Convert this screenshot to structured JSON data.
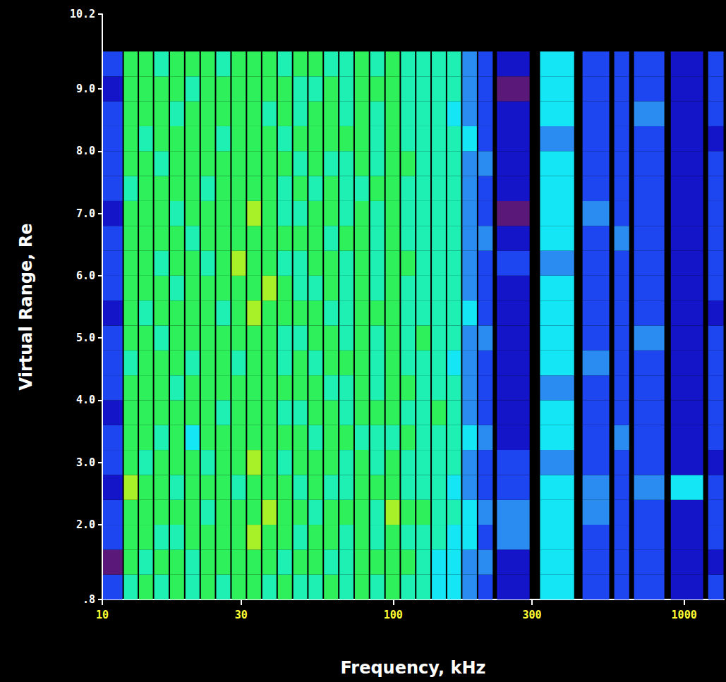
{
  "chart_data": {
    "type": "heatmap",
    "x_label": "Frequency, kHz",
    "y_label": "Virtual Range, Re",
    "log": "x",
    "grid": false,
    "xlim": [
      10,
      1370
    ],
    "xticks": [
      10,
      30,
      100,
      300,
      1000
    ],
    "ylim": [
      0.8,
      10.2
    ],
    "yticks": [
      {
        "value": 0.8,
        "label": ".8"
      },
      {
        "value": 2,
        "label": "2.0"
      },
      {
        "value": 3,
        "label": "3.0"
      },
      {
        "value": 4,
        "label": "4.0"
      },
      {
        "value": 5,
        "label": "5.0"
      },
      {
        "value": 6,
        "label": "6.0"
      },
      {
        "value": 7,
        "label": "7.0"
      },
      {
        "value": 8,
        "label": "8.0"
      },
      {
        "value": 9,
        "label": "9.0"
      },
      {
        "value": 10.2,
        "label": "10.2"
      }
    ],
    "zlim": [
      0,
      8
    ],
    "y_edges": [
      0.8,
      1.2,
      1.6,
      2.0,
      2.4,
      2.8,
      3.2,
      3.6,
      4.0,
      4.4,
      4.8,
      5.2,
      5.6,
      6.0,
      6.4,
      6.8,
      7.2,
      7.6,
      8.0,
      8.4,
      8.8,
      9.2,
      9.6
    ],
    "columns": [
      {
        "f": [
          10,
          11.8
        ],
        "values": [
          2,
          0,
          2,
          2,
          1,
          2,
          2,
          1,
          2,
          2,
          2,
          1,
          2,
          2,
          2,
          1,
          2,
          2,
          2,
          2,
          1,
          2
        ]
      },
      {
        "f": [
          11.8,
          13.3
        ],
        "values": [
          5,
          6,
          6,
          6,
          7,
          6,
          6,
          6,
          6,
          5,
          6,
          6,
          6,
          6,
          6,
          6,
          5,
          6,
          6,
          6,
          6,
          6
        ]
      },
      {
        "f": [
          13.3,
          15.0
        ],
        "values": [
          6,
          5,
          6,
          6,
          6,
          5,
          6,
          6,
          6,
          6,
          6,
          5,
          6,
          6,
          6,
          6,
          6,
          6,
          5,
          6,
          6,
          6
        ]
      },
      {
        "f": [
          15.0,
          17.0
        ],
        "values": [
          5,
          6,
          5,
          6,
          6,
          6,
          5,
          6,
          6,
          6,
          5,
          6,
          6,
          5,
          6,
          6,
          6,
          5,
          6,
          6,
          6,
          5
        ]
      },
      {
        "f": [
          17.0,
          19.2
        ],
        "values": [
          6,
          6,
          5,
          6,
          5,
          6,
          6,
          6,
          5,
          6,
          6,
          6,
          5,
          6,
          6,
          5,
          6,
          6,
          6,
          5,
          6,
          6
        ]
      },
      {
        "f": [
          19.2,
          21.7
        ],
        "values": [
          5,
          5,
          6,
          6,
          6,
          6,
          4,
          6,
          6,
          5,
          6,
          6,
          6,
          6,
          5,
          6,
          6,
          6,
          6,
          6,
          5,
          6
        ]
      },
      {
        "f": [
          21.7,
          24.5
        ],
        "values": [
          6,
          6,
          6,
          5,
          6,
          5,
          6,
          6,
          6,
          6,
          6,
          6,
          6,
          5,
          6,
          6,
          5,
          6,
          6,
          6,
          6,
          6
        ]
      },
      {
        "f": [
          24.5,
          27.7
        ],
        "values": [
          5,
          6,
          6,
          6,
          6,
          6,
          6,
          5,
          6,
          6,
          6,
          5,
          6,
          6,
          6,
          6,
          6,
          6,
          5,
          6,
          6,
          5
        ]
      },
      {
        "f": [
          27.7,
          31.3
        ],
        "values": [
          6,
          6,
          6,
          6,
          5,
          6,
          6,
          6,
          6,
          5,
          6,
          6,
          6,
          7,
          6,
          6,
          6,
          6,
          6,
          6,
          6,
          6
        ]
      },
      {
        "f": [
          31.3,
          35.3
        ],
        "values": [
          6,
          6,
          7,
          6,
          6,
          7,
          6,
          6,
          6,
          6,
          6,
          7,
          6,
          6,
          6,
          7,
          6,
          6,
          6,
          6,
          6,
          6
        ]
      },
      {
        "f": [
          35.3,
          39.9
        ],
        "values": [
          5,
          6,
          6,
          7,
          6,
          6,
          6,
          6,
          6,
          6,
          6,
          6,
          7,
          6,
          6,
          6,
          6,
          6,
          6,
          5,
          6,
          6
        ]
      },
      {
        "f": [
          39.9,
          45.1
        ],
        "values": [
          6,
          5,
          6,
          6,
          6,
          5,
          6,
          5,
          6,
          5,
          5,
          6,
          6,
          5,
          6,
          5,
          5,
          6,
          5,
          6,
          6,
          5
        ]
      },
      {
        "f": [
          45.1,
          50.9
        ],
        "values": [
          5,
          6,
          5,
          6,
          5,
          6,
          6,
          5,
          6,
          6,
          5,
          6,
          5,
          5,
          6,
          5,
          6,
          5,
          6,
          5,
          5,
          6
        ]
      },
      {
        "f": [
          50.9,
          57.5
        ],
        "values": [
          5,
          6,
          6,
          5,
          6,
          6,
          5,
          6,
          6,
          5,
          6,
          6,
          5,
          6,
          6,
          6,
          5,
          6,
          6,
          6,
          5,
          6
        ]
      },
      {
        "f": [
          57.5,
          65.0
        ],
        "values": [
          6,
          5,
          6,
          6,
          5,
          6,
          6,
          6,
          5,
          6,
          6,
          5,
          6,
          6,
          5,
          6,
          6,
          5,
          6,
          6,
          6,
          5
        ]
      },
      {
        "f": [
          65.0,
          73.4
        ],
        "values": [
          5,
          5,
          5,
          6,
          5,
          5,
          6,
          5,
          5,
          6,
          5,
          5,
          5,
          5,
          6,
          5,
          5,
          5,
          6,
          5,
          5,
          5
        ]
      },
      {
        "f": [
          73.4,
          82.9
        ],
        "values": [
          6,
          6,
          6,
          6,
          6,
          6,
          5,
          6,
          6,
          6,
          6,
          6,
          6,
          6,
          6,
          6,
          5,
          6,
          6,
          6,
          6,
          6
        ]
      },
      {
        "f": [
          82.9,
          93.7
        ],
        "values": [
          5,
          6,
          5,
          5,
          6,
          5,
          5,
          6,
          5,
          5,
          5,
          6,
          5,
          5,
          5,
          5,
          6,
          5,
          5,
          5,
          6,
          5
        ]
      },
      {
        "f": [
          93.7,
          105.8
        ],
        "values": [
          6,
          6,
          6,
          7,
          6,
          6,
          5,
          6,
          6,
          6,
          6,
          6,
          6,
          6,
          6,
          6,
          6,
          6,
          6,
          6,
          6,
          6
        ]
      },
      {
        "f": [
          105.8,
          119.5
        ],
        "values": [
          5,
          6,
          5,
          6,
          5,
          5,
          6,
          5,
          6,
          5,
          5,
          5,
          5,
          6,
          5,
          5,
          5,
          6,
          5,
          5,
          5,
          5
        ]
      },
      {
        "f": [
          119.5,
          135
        ],
        "values": [
          5,
          5,
          5,
          6,
          5,
          5,
          5,
          5,
          5,
          5,
          6,
          5,
          5,
          5,
          5,
          5,
          5,
          5,
          5,
          5,
          5,
          5
        ]
      },
      {
        "f": [
          135,
          152.5
        ],
        "values": [
          4,
          4,
          5,
          5,
          5,
          5,
          5,
          6,
          5,
          5,
          5,
          5,
          5,
          5,
          5,
          5,
          5,
          5,
          5,
          5,
          5,
          5
        ]
      },
      {
        "f": [
          152.5,
          172
        ],
        "values": [
          4,
          4,
          4,
          5,
          4,
          5,
          5,
          5,
          5,
          4,
          5,
          5,
          5,
          5,
          5,
          5,
          5,
          5,
          5,
          4,
          5,
          5
        ]
      },
      {
        "f": [
          172,
          195
        ],
        "values": [
          3,
          3,
          4,
          4,
          3,
          3,
          4,
          3,
          3,
          3,
          3,
          4,
          3,
          3,
          3,
          3,
          3,
          3,
          4,
          3,
          3,
          3
        ]
      },
      {
        "f": [
          195,
          221
        ],
        "values": [
          2,
          3,
          2,
          3,
          2,
          2,
          3,
          2,
          2,
          2,
          3,
          2,
          2,
          2,
          3,
          2,
          2,
          3,
          2,
          2,
          2,
          2
        ]
      },
      {
        "f": [
          226,
          296
        ],
        "values": [
          1,
          1,
          3,
          3,
          2,
          2,
          1,
          1,
          1,
          1,
          1,
          1,
          1,
          2,
          1,
          0,
          1,
          1,
          1,
          1,
          0,
          1
        ]
      },
      {
        "f": [
          318,
          421
        ],
        "values": [
          4,
          4,
          4,
          4,
          4,
          3,
          4,
          4,
          3,
          4,
          4,
          4,
          4,
          3,
          4,
          4,
          4,
          4,
          3,
          4,
          4,
          4
        ]
      },
      {
        "f": [
          445,
          556
        ],
        "values": [
          2,
          2,
          2,
          3,
          3,
          2,
          2,
          2,
          2,
          3,
          2,
          2,
          2,
          2,
          2,
          3,
          2,
          2,
          2,
          2,
          2,
          2
        ]
      },
      {
        "f": [
          572,
          651
        ],
        "values": [
          2,
          2,
          2,
          2,
          2,
          2,
          3,
          2,
          2,
          2,
          2,
          2,
          2,
          2,
          3,
          2,
          2,
          2,
          2,
          2,
          2,
          2
        ]
      },
      {
        "f": [
          669,
          860
        ],
        "values": [
          2,
          2,
          2,
          2,
          3,
          2,
          2,
          2,
          2,
          2,
          3,
          2,
          2,
          2,
          2,
          2,
          2,
          2,
          2,
          3,
          2,
          2
        ]
      },
      {
        "f": [
          895,
          1169
        ],
        "values": [
          1,
          1,
          1,
          1,
          4,
          1,
          1,
          1,
          1,
          1,
          1,
          1,
          1,
          1,
          1,
          1,
          1,
          1,
          1,
          1,
          1,
          1
        ]
      },
      {
        "f": [
          1203,
          1374
        ],
        "values": [
          2,
          1,
          2,
          2,
          2,
          1,
          2,
          2,
          2,
          2,
          2,
          1,
          2,
          2,
          2,
          2,
          2,
          2,
          1,
          2,
          2,
          2
        ]
      }
    ]
  }
}
